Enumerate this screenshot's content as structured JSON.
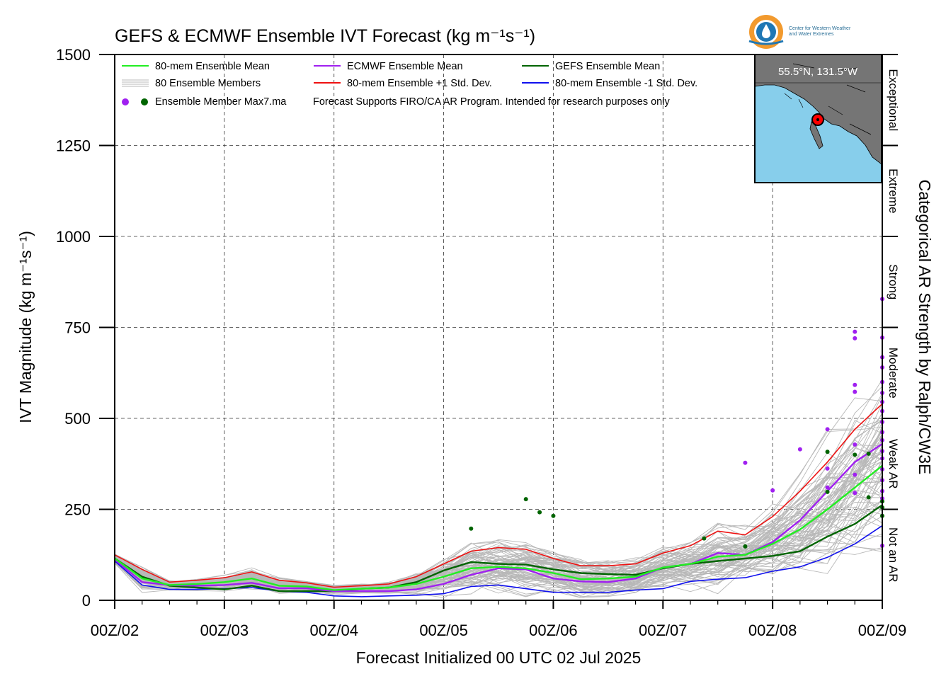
{
  "chart_data": {
    "type": "line",
    "title": "GEFS & ECMWF Ensemble IVT Forecast (kg m⁻¹s⁻¹)",
    "xlabel": "Forecast Initialized 00 UTC 02 Jul 2025",
    "ylabel": "IVT Magnitude (kg m⁻¹s⁻¹)",
    "right_label": "Categorical AR Strength by Ralph/CW3E",
    "xlim": [
      0,
      168
    ],
    "ylim": [
      0,
      1500
    ],
    "x_unit": "forecast hour",
    "x_ticks": [
      {
        "x": 0,
        "label": "00Z/02"
      },
      {
        "x": 24,
        "label": "00Z/03"
      },
      {
        "x": 48,
        "label": "00Z/04"
      },
      {
        "x": 72,
        "label": "00Z/05"
      },
      {
        "x": 96,
        "label": "00Z/06"
      },
      {
        "x": 120,
        "label": "00Z/07"
      },
      {
        "x": 144,
        "label": "00Z/08"
      },
      {
        "x": 168,
        "label": "00Z/09"
      }
    ],
    "y_ticks": [
      {
        "y": 0,
        "label": "0"
      },
      {
        "y": 250,
        "label": "250"
      },
      {
        "y": 500,
        "label": "500"
      },
      {
        "y": 750,
        "label": "750"
      },
      {
        "y": 1000,
        "label": "1000"
      },
      {
        "y": 1250,
        "label": "1250"
      },
      {
        "y": 1500,
        "label": "1500"
      }
    ],
    "grid": true,
    "legend_position": "top-left",
    "legend": [
      {
        "label": "80-mem Ensemble Mean",
        "color": "#22ee22",
        "kind": "line"
      },
      {
        "label": "ECMWF Ensemble Mean",
        "color": "#a020f0",
        "kind": "line"
      },
      {
        "label": "GEFS Ensemble Mean",
        "color": "#006400",
        "kind": "line"
      },
      {
        "label": "80 Ensemble Members",
        "color": "#b8b8b8",
        "kind": "lines"
      },
      {
        "label": "80-mem Ensemble +1 Std. Dev.",
        "color": "#ee1111",
        "kind": "line"
      },
      {
        "label": "80-mem Ensemble -1 Std. Dev.",
        "color": "#1010ee",
        "kind": "line"
      },
      {
        "label": "Ensemble Member Max7.ma",
        "color": "#a020f0",
        "kind": "dots"
      }
    ],
    "disclaimer": "Forecast Supports FIRO/CA AR Program. Intended for research purposes only",
    "categories": [
      {
        "label": "Exceptional",
        "from": 1250,
        "to": 1500
      },
      {
        "label": "Extreme",
        "from": 1000,
        "to": 1250
      },
      {
        "label": "Strong",
        "from": 750,
        "to": 1000
      },
      {
        "label": "Moderate",
        "from": 500,
        "to": 750
      },
      {
        "label": "Weak AR",
        "from": 250,
        "to": 500
      },
      {
        "label": "Not an AR",
        "from": 0,
        "to": 250
      }
    ],
    "inset": {
      "label": "55.5°N, 131.5°W",
      "ocean_color": "#87ceeb",
      "land_color": "#757575",
      "marker_color": "#ff0000"
    },
    "logo": {
      "line1": "Center for Western Weather",
      "line2": "and Water Extremes"
    },
    "series": [
      {
        "name": "80-mem Ensemble +1 Std. Dev.",
        "color": "#ee1111",
        "x": [
          0,
          6,
          12,
          18,
          24,
          30,
          36,
          42,
          48,
          54,
          60,
          66,
          72,
          78,
          84,
          90,
          96,
          102,
          108,
          114,
          120,
          126,
          132,
          138,
          144,
          150,
          156,
          162,
          168
        ],
        "y": [
          125,
          85,
          50,
          55,
          62,
          78,
          55,
          48,
          36,
          40,
          45,
          65,
          100,
          135,
          145,
          140,
          115,
          95,
          95,
          100,
          130,
          150,
          190,
          180,
          230,
          300,
          380,
          470,
          540
        ]
      },
      {
        "name": "80-mem Ensemble Mean",
        "color": "#22ee22",
        "x": [
          0,
          6,
          12,
          18,
          24,
          30,
          36,
          42,
          48,
          54,
          60,
          66,
          72,
          78,
          84,
          90,
          96,
          102,
          108,
          114,
          120,
          126,
          132,
          138,
          144,
          150,
          156,
          162,
          168
        ],
        "y": [
          115,
          60,
          42,
          45,
          50,
          60,
          40,
          38,
          28,
          32,
          35,
          45,
          65,
          88,
          92,
          88,
          75,
          58,
          60,
          65,
          90,
          100,
          120,
          125,
          155,
          195,
          250,
          310,
          370
        ]
      },
      {
        "name": "ECMWF Ensemble Mean",
        "color": "#a020f0",
        "x": [
          0,
          6,
          12,
          18,
          24,
          30,
          36,
          42,
          48,
          54,
          60,
          66,
          72,
          78,
          84,
          90,
          96,
          102,
          108,
          114,
          120,
          126,
          132,
          138,
          144,
          150,
          156,
          162,
          168
        ],
        "y": [
          112,
          50,
          42,
          40,
          42,
          48,
          33,
          33,
          25,
          25,
          25,
          30,
          45,
          70,
          88,
          85,
          60,
          52,
          50,
          60,
          90,
          100,
          130,
          125,
          160,
          220,
          300,
          380,
          430
        ]
      },
      {
        "name": "GEFS Ensemble Mean",
        "color": "#006400",
        "x": [
          0,
          6,
          12,
          18,
          24,
          30,
          36,
          42,
          48,
          54,
          60,
          66,
          72,
          78,
          84,
          90,
          96,
          102,
          108,
          114,
          120,
          126,
          132,
          138,
          144,
          150,
          156,
          162,
          168
        ],
        "y": [
          115,
          65,
          40,
          35,
          30,
          40,
          25,
          25,
          25,
          32,
          35,
          50,
          82,
          105,
          100,
          98,
          85,
          75,
          72,
          70,
          88,
          100,
          108,
          115,
          122,
          135,
          175,
          210,
          262
        ]
      },
      {
        "name": "80-mem Ensemble -1 Std. Dev.",
        "color": "#1010ee",
        "x": [
          0,
          6,
          12,
          18,
          24,
          30,
          36,
          42,
          48,
          54,
          60,
          66,
          72,
          78,
          84,
          90,
          96,
          102,
          108,
          114,
          120,
          126,
          132,
          138,
          144,
          150,
          156,
          162,
          168
        ],
        "y": [
          108,
          42,
          30,
          30,
          32,
          35,
          25,
          22,
          12,
          10,
          12,
          14,
          18,
          38,
          42,
          32,
          22,
          22,
          22,
          28,
          32,
          52,
          58,
          62,
          80,
          92,
          118,
          155,
          205
        ]
      }
    ],
    "max_points_ecmwf": [
      {
        "x": 138,
        "y": 378
      },
      {
        "x": 144,
        "y": 302
      },
      {
        "x": 150,
        "y": 415
      },
      {
        "x": 156,
        "y": 470
      },
      {
        "x": 156,
        "y": 362
      },
      {
        "x": 156,
        "y": 310
      },
      {
        "x": 162,
        "y": 738
      },
      {
        "x": 162,
        "y": 720
      },
      {
        "x": 162,
        "y": 592
      },
      {
        "x": 162,
        "y": 573
      },
      {
        "x": 162,
        "y": 428
      },
      {
        "x": 162,
        "y": 345
      },
      {
        "x": 162,
        "y": 295
      },
      {
        "x": 168,
        "y": 828
      },
      {
        "x": 168,
        "y": 722
      },
      {
        "x": 168,
        "y": 668
      },
      {
        "x": 168,
        "y": 640
      },
      {
        "x": 168,
        "y": 600
      },
      {
        "x": 168,
        "y": 570
      },
      {
        "x": 168,
        "y": 545
      },
      {
        "x": 168,
        "y": 520
      },
      {
        "x": 168,
        "y": 490
      },
      {
        "x": 168,
        "y": 462
      },
      {
        "x": 168,
        "y": 440
      },
      {
        "x": 168,
        "y": 410
      },
      {
        "x": 168,
        "y": 390
      },
      {
        "x": 168,
        "y": 360
      },
      {
        "x": 168,
        "y": 330
      },
      {
        "x": 168,
        "y": 300
      },
      {
        "x": 168,
        "y": 280
      },
      {
        "x": 168,
        "y": 150
      }
    ],
    "max_points_gefs": [
      {
        "x": 78,
        "y": 197
      },
      {
        "x": 90,
        "y": 278
      },
      {
        "x": 93,
        "y": 242
      },
      {
        "x": 96,
        "y": 232
      },
      {
        "x": 129,
        "y": 170
      },
      {
        "x": 138,
        "y": 148
      },
      {
        "x": 156,
        "y": 408
      },
      {
        "x": 156,
        "y": 298
      },
      {
        "x": 162,
        "y": 400
      },
      {
        "x": 165,
        "y": 403
      },
      {
        "x": 165,
        "y": 283
      },
      {
        "x": 168,
        "y": 272
      },
      {
        "x": 168,
        "y": 255
      },
      {
        "x": 168,
        "y": 232
      }
    ]
  }
}
